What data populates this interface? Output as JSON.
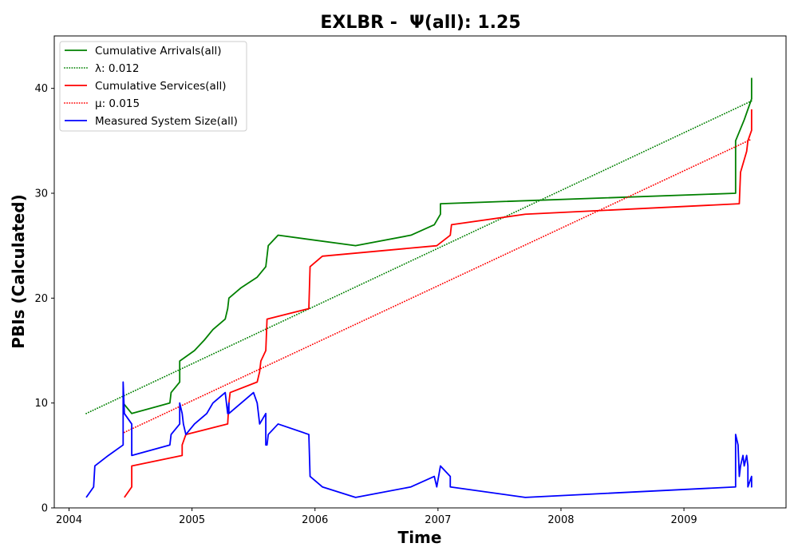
{
  "chart_data": {
    "type": "line",
    "title": "EXLBR -  Ψ(all): 1.25",
    "xlabel": "Time",
    "ylabel": "PBIs (Calculated)",
    "xlim": [
      2003.88,
      2009.83
    ],
    "ylim": [
      0,
      45
    ],
    "x_ticks": [
      2004,
      2005,
      2006,
      2007,
      2008,
      2009
    ],
    "y_ticks": [
      0,
      10,
      20,
      30,
      40
    ],
    "grid": false,
    "legend_position": "top-left",
    "series": [
      {
        "name": "Cumulative Arrivals(all)",
        "style": "solid",
        "color": "#008000",
        "points": [
          [
            2004.44,
            10
          ],
          [
            2004.51,
            9
          ],
          [
            2004.82,
            10
          ],
          [
            2004.83,
            11
          ],
          [
            2004.9,
            12
          ],
          [
            2004.9,
            14
          ],
          [
            2005.02,
            15
          ],
          [
            2005.1,
            16
          ],
          [
            2005.17,
            17
          ],
          [
            2005.27,
            18
          ],
          [
            2005.29,
            19
          ],
          [
            2005.3,
            20
          ],
          [
            2005.4,
            21
          ],
          [
            2005.53,
            22
          ],
          [
            2005.6,
            23
          ],
          [
            2005.62,
            25
          ],
          [
            2005.7,
            26
          ],
          [
            2006.33,
            25
          ],
          [
            2006.78,
            26
          ],
          [
            2006.97,
            27
          ],
          [
            2007.02,
            28
          ],
          [
            2007.02,
            29
          ],
          [
            2009.42,
            30
          ],
          [
            2009.42,
            35
          ],
          [
            2009.49,
            37
          ],
          [
            2009.52,
            38
          ],
          [
            2009.55,
            39
          ],
          [
            2009.55,
            41
          ]
        ]
      },
      {
        "name": "λ: 0.012",
        "style": "dotted",
        "color": "#008000",
        "points": [
          [
            2004.14,
            9.0
          ],
          [
            2009.55,
            38.8
          ]
        ]
      },
      {
        "name": "Cumulative Services(all)",
        "style": "solid",
        "color": "#ff0000",
        "points": [
          [
            2004.45,
            1
          ],
          [
            2004.51,
            2
          ],
          [
            2004.51,
            4
          ],
          [
            2004.92,
            5
          ],
          [
            2004.92,
            6
          ],
          [
            2004.95,
            7
          ],
          [
            2005.29,
            8
          ],
          [
            2005.3,
            10
          ],
          [
            2005.31,
            11
          ],
          [
            2005.53,
            12
          ],
          [
            2005.55,
            13
          ],
          [
            2005.56,
            14
          ],
          [
            2005.6,
            15
          ],
          [
            2005.61,
            18
          ],
          [
            2005.95,
            19
          ],
          [
            2005.96,
            23
          ],
          [
            2006.06,
            24
          ],
          [
            2006.99,
            25
          ],
          [
            2007.1,
            26
          ],
          [
            2007.11,
            27
          ],
          [
            2007.71,
            28
          ],
          [
            2009.45,
            29
          ],
          [
            2009.46,
            32
          ],
          [
            2009.51,
            34
          ],
          [
            2009.52,
            35
          ],
          [
            2009.55,
            36
          ],
          [
            2009.55,
            38
          ]
        ]
      },
      {
        "name": "μ: 0.015",
        "style": "dotted",
        "color": "#ff0000",
        "points": [
          [
            2004.45,
            7.2
          ],
          [
            2009.54,
            35.1
          ]
        ]
      },
      {
        "name": "Measured System Size(all)",
        "style": "solid",
        "color": "#0000ff",
        "points": [
          [
            2004.14,
            1
          ],
          [
            2004.2,
            2
          ],
          [
            2004.21,
            4
          ],
          [
            2004.32,
            5
          ],
          [
            2004.44,
            6
          ],
          [
            2004.44,
            12
          ],
          [
            2004.45,
            9
          ],
          [
            2004.51,
            8
          ],
          [
            2004.51,
            5
          ],
          [
            2004.82,
            6
          ],
          [
            2004.83,
            7
          ],
          [
            2004.9,
            8
          ],
          [
            2004.9,
            10
          ],
          [
            2004.92,
            9
          ],
          [
            2004.93,
            8
          ],
          [
            2004.95,
            7
          ],
          [
            2005.02,
            8
          ],
          [
            2005.12,
            9
          ],
          [
            2005.17,
            10
          ],
          [
            2005.27,
            11
          ],
          [
            2005.29,
            9
          ],
          [
            2005.3,
            10
          ],
          [
            2005.3,
            9
          ],
          [
            2005.4,
            10
          ],
          [
            2005.5,
            11
          ],
          [
            2005.53,
            10
          ],
          [
            2005.55,
            8
          ],
          [
            2005.6,
            9
          ],
          [
            2005.6,
            6
          ],
          [
            2005.61,
            6
          ],
          [
            2005.62,
            7
          ],
          [
            2005.7,
            8
          ],
          [
            2005.95,
            7
          ],
          [
            2005.96,
            3
          ],
          [
            2006.06,
            2
          ],
          [
            2006.33,
            1
          ],
          [
            2006.78,
            2
          ],
          [
            2006.97,
            3
          ],
          [
            2006.99,
            2
          ],
          [
            2007.02,
            4
          ],
          [
            2007.1,
            3
          ],
          [
            2007.1,
            2
          ],
          [
            2007.71,
            1
          ],
          [
            2009.42,
            2
          ],
          [
            2009.42,
            7
          ],
          [
            2009.44,
            6
          ],
          [
            2009.45,
            3
          ],
          [
            2009.46,
            4
          ],
          [
            2009.48,
            5
          ],
          [
            2009.49,
            4
          ],
          [
            2009.51,
            5
          ],
          [
            2009.52,
            4
          ],
          [
            2009.52,
            2
          ],
          [
            2009.55,
            3
          ],
          [
            2009.55,
            2
          ],
          [
            2009.55,
            3
          ]
        ]
      }
    ]
  }
}
